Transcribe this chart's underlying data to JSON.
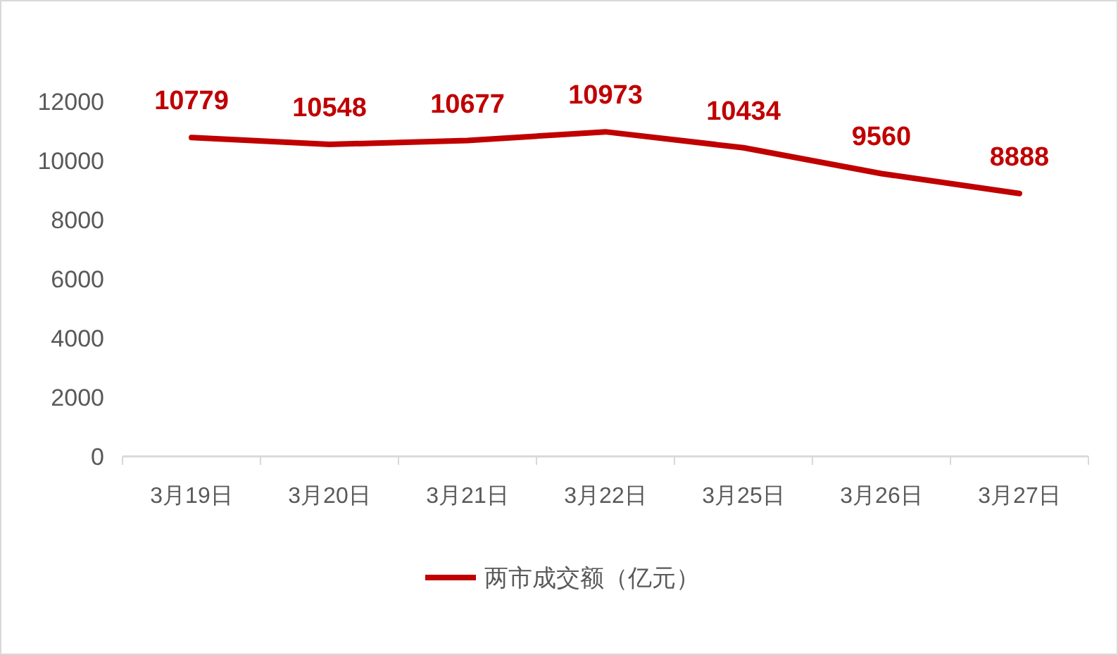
{
  "chart_data": {
    "type": "line",
    "categories": [
      "3月19日",
      "3月20日",
      "3月21日",
      "3月22日",
      "3月25日",
      "3月26日",
      "3月27日"
    ],
    "series": [
      {
        "name": "两市成交额（亿元）",
        "color": "#c00000",
        "values": [
          10779,
          10548,
          10677,
          10973,
          10434,
          9560,
          8888
        ]
      }
    ],
    "ylim": [
      0,
      12000
    ],
    "yticks": [
      0,
      2000,
      4000,
      6000,
      8000,
      10000,
      12000
    ],
    "grid": false,
    "legend": "bottom",
    "marker": "none",
    "line_style": "solid",
    "data_labels": true
  }
}
